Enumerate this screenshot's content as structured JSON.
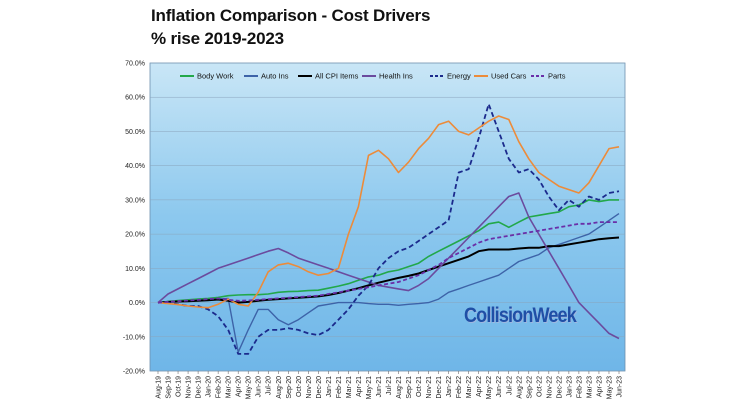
{
  "title_line1": "Inflation Comparison - Cost Drivers",
  "title_line2": "% rise  2019-2023",
  "watermark": "CollisionWeek",
  "chart_data": {
    "type": "line",
    "ylim": [
      -20,
      70
    ],
    "yticks": [
      "-20.0%",
      "-10.0%",
      "0.0%",
      "10.0%",
      "20.0%",
      "30.0%",
      "40.0%",
      "50.0%",
      "60.0%",
      "70.0%"
    ],
    "ytick_values": [
      -20,
      -10,
      0,
      10,
      20,
      30,
      40,
      50,
      60,
      70
    ],
    "x": [
      "Aug-19",
      "Sep-19",
      "Oct-19",
      "Nov-19",
      "Dec-19",
      "Jan-20",
      "Feb-20",
      "Mar-20",
      "Apr-20",
      "May-20",
      "Jun-20",
      "Jul-20",
      "Aug-20",
      "Sep-20",
      "Oct-20",
      "Nov-20",
      "Dec-20",
      "Jan-21",
      "Feb-21",
      "Mar-21",
      "Apr-21",
      "May-21",
      "Jun-21",
      "Jul-21",
      "Aug-21",
      "Sep-21",
      "Oct-21",
      "Nov-21",
      "Dec-21",
      "Jan-22",
      "Feb-22",
      "Mar-22",
      "Apr-22",
      "May-22",
      "Jun-22",
      "Jul-22",
      "Aug-22",
      "Sep-22",
      "Oct-22",
      "Nov-22",
      "Dec-22",
      "Jan-23",
      "Feb-23",
      "Mar-23",
      "Apr-23",
      "May-23",
      "Jun-23"
    ],
    "legend_placement": "top",
    "series": [
      {
        "name": "Body Work",
        "color": "#22a84a",
        "dash": "solid",
        "width": 1.6,
        "values": [
          0,
          0.3,
          0.6,
          0.8,
          1,
          1.2,
          1.5,
          2,
          2.2,
          2.3,
          2.3,
          2.5,
          3,
          3.2,
          3.3,
          3.5,
          3.6,
          4.2,
          4.8,
          5.5,
          6.5,
          7.5,
          8,
          9,
          9.5,
          10.5,
          11.5,
          13.5,
          15,
          16.5,
          18,
          19.5,
          21,
          23,
          23.5,
          22,
          23.5,
          25,
          25.5,
          26,
          26.5,
          28,
          28.5,
          30,
          29.5,
          30,
          30
        ]
      },
      {
        "name": "Auto Ins",
        "color": "#3d63a8",
        "dash": "solid",
        "width": 1.4,
        "values": [
          0,
          0.2,
          0.3,
          0.4,
          0.6,
          0.8,
          1.0,
          1.2,
          -14.5,
          -8,
          -2,
          -2,
          -5,
          -6.5,
          -5,
          -3,
          -1,
          -0.5,
          0,
          0,
          0,
          -0.3,
          -0.5,
          -0.5,
          -0.8,
          -0.5,
          -0.3,
          0,
          1,
          3,
          4,
          5,
          6,
          7,
          8,
          10,
          12,
          13,
          14,
          16,
          17,
          18,
          19,
          20,
          22,
          24,
          26
        ]
      },
      {
        "name": "All CPI Items",
        "color": "#000000",
        "dash": "solid",
        "width": 2,
        "values": [
          0,
          0.2,
          0.3,
          0.4,
          0.5,
          0.7,
          0.9,
          0.5,
          0,
          0.2,
          0.5,
          0.8,
          1,
          1.2,
          1.4,
          1.6,
          1.8,
          2.2,
          2.8,
          3.5,
          4.2,
          5,
          5.8,
          6.5,
          7.2,
          7.8,
          8.5,
          9.5,
          10.5,
          11.5,
          12.5,
          13.5,
          15,
          15.5,
          15.5,
          15.5,
          15.8,
          16,
          16,
          16.5,
          16.5,
          17,
          17.5,
          18,
          18.5,
          18.8,
          19
        ]
      },
      {
        "name": "Health Ins",
        "color": "#6b4b9e",
        "dash": "solid",
        "width": 1.6,
        "values": [
          0,
          2.5,
          4,
          5.5,
          7,
          8.5,
          10,
          11,
          12,
          13,
          14,
          15,
          15.8,
          14.5,
          13,
          12,
          11,
          10,
          9,
          8,
          7,
          6,
          5,
          4.5,
          4,
          3.5,
          5,
          7,
          10,
          13,
          16,
          19,
          22,
          25,
          28,
          31,
          32,
          25,
          20,
          15,
          10,
          5,
          0,
          -3,
          -6,
          -9,
          -10.5
        ]
      },
      {
        "name": "Energy",
        "color": "#1b2a8c",
        "dash": "5,3",
        "width": 1.8,
        "values": [
          0,
          0,
          -0.5,
          -1,
          -1,
          -2,
          -4,
          -8,
          -15,
          -15,
          -10,
          -8,
          -8,
          -7.5,
          -8,
          -9,
          -9.5,
          -8,
          -5,
          -2,
          2,
          5,
          10,
          13,
          15,
          16,
          18,
          20,
          22,
          24,
          38,
          39,
          48,
          58,
          50,
          42,
          38,
          39,
          36,
          31,
          27,
          30,
          28,
          31,
          30,
          32,
          32.5
        ]
      },
      {
        "name": "Used Cars",
        "color": "#ec8b3a",
        "dash": "solid",
        "width": 1.6,
        "values": [
          0,
          -0.3,
          -0.6,
          -1,
          -1.3,
          -1.5,
          -0.5,
          1,
          -0.5,
          -1,
          3,
          9,
          11,
          11.5,
          10.5,
          9,
          8,
          8.5,
          10,
          20,
          28,
          43,
          44.5,
          42,
          38,
          41,
          45,
          48,
          52,
          53,
          50,
          49,
          51,
          53,
          54.5,
          53.5,
          47,
          42,
          38,
          36,
          34,
          33,
          32,
          35,
          40,
          45,
          45.5
        ]
      },
      {
        "name": "Parts",
        "color": "#6a2fa8",
        "dash": "4,2.5",
        "width": 1.8,
        "values": [
          0,
          0.2,
          0.4,
          0.6,
          0.8,
          1.0,
          1.2,
          0.8,
          0.5,
          0.6,
          0.8,
          1,
          1.2,
          1.4,
          1.6,
          1.8,
          2,
          2.5,
          3,
          3.5,
          4,
          4.5,
          5,
          5.5,
          6,
          7,
          8,
          9.5,
          11,
          13,
          14.5,
          16,
          17.5,
          18.5,
          19,
          19.5,
          20,
          20.5,
          21,
          21.5,
          22,
          22.5,
          23,
          23,
          23.5,
          23.5,
          23.5
        ]
      }
    ]
  }
}
